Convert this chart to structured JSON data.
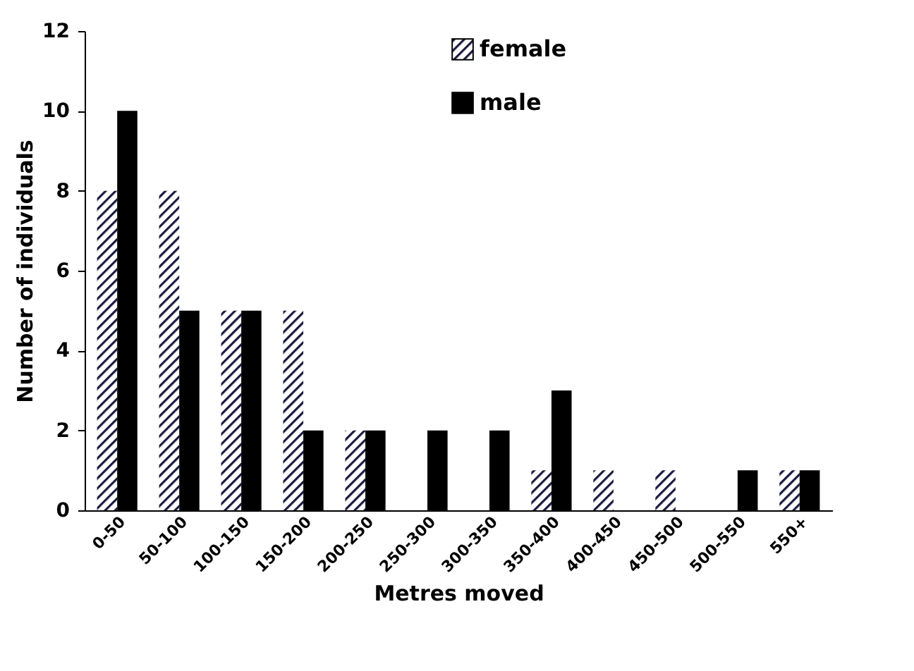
{
  "chart_data": {
    "type": "bar",
    "xlabel": "Metres moved",
    "ylabel": "Number of individuals",
    "categories": [
      "0-50",
      "50-100",
      "100-150",
      "150-200",
      "200-250",
      "250-300",
      "300-350",
      "350-400",
      "400-450",
      "450-500",
      "500-550",
      "550+"
    ],
    "series": [
      {
        "name": "female",
        "color": "#1a1a40",
        "values": [
          8,
          8,
          5,
          5,
          2,
          0,
          0,
          1,
          1,
          1,
          0,
          1
        ]
      },
      {
        "name": "male",
        "color": "#000000",
        "values": [
          10,
          5,
          5,
          2,
          2,
          2,
          2,
          3,
          0,
          0,
          1,
          1
        ]
      }
    ],
    "ylim": [
      0,
      12
    ],
    "yticks": [
      0,
      2,
      4,
      6,
      8,
      10,
      12
    ],
    "grid": false,
    "legend": "top right"
  }
}
